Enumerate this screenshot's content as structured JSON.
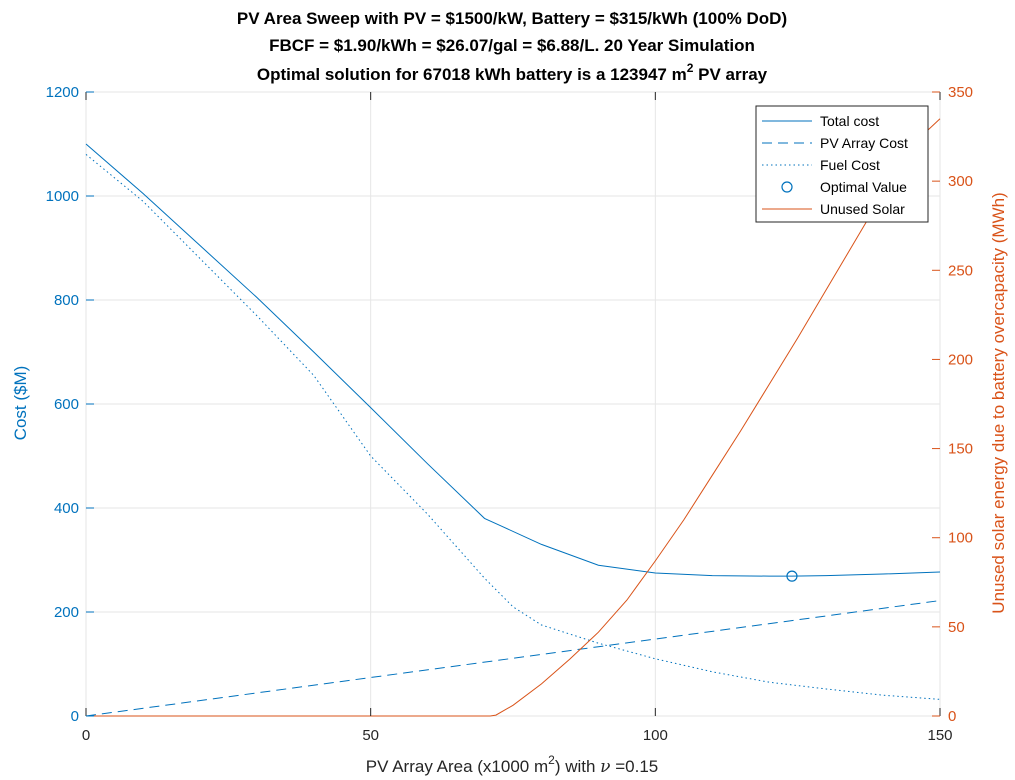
{
  "chart_data": {
    "type": "line",
    "title_lines": [
      "PV Area Sweep with PV = $1500/kW, Battery = $315/kWh (100% DoD)",
      "FBCF = $1.90/kWh = $26.07/gal = $6.88/L. 20 Year Simulation"
    ],
    "title_line3": {
      "before": "Optimal solution for 67018 kWh battery  is a 123947 m",
      "superscript": "2",
      "after": " PV array"
    },
    "xlabel": {
      "before": "PV Array Area (x1000 m",
      "superscript": "2",
      "after": ") with ",
      "symbol": "ν",
      "end": " =0.15"
    },
    "ylabel_left": "Cost ($M)",
    "ylabel_right": "Unused solar energy due to battery overcapacity (MWh)",
    "xlim": [
      0,
      150
    ],
    "ylim_left": [
      0,
      1200
    ],
    "ylim_right": [
      0,
      350
    ],
    "xticks": [
      0,
      50,
      100,
      150
    ],
    "yticks_left": [
      0,
      200,
      400,
      600,
      800,
      1000,
      1200
    ],
    "yticks_right": [
      0,
      50,
      100,
      150,
      200,
      250,
      300,
      350
    ],
    "grid": true,
    "legend_position": "top-right",
    "colors": {
      "left_axis": "#0072BD",
      "right_axis": "#D95319",
      "grid": "#e6e6e6"
    },
    "series": [
      {
        "name": "Total cost",
        "axis": "left",
        "style": "solid",
        "color": "#0072BD",
        "x": [
          0,
          10,
          20,
          30,
          40,
          50,
          60,
          70,
          73,
          80,
          90,
          100,
          110,
          120,
          124,
          130,
          140,
          150
        ],
        "y": [
          1100,
          1005,
          905,
          805,
          700,
          593,
          485,
          380,
          365,
          330,
          290,
          275,
          270,
          269,
          269,
          270,
          273,
          277
        ]
      },
      {
        "name": "PV Array Cost",
        "axis": "left",
        "style": "dashed",
        "color": "#0072BD",
        "x": [
          0,
          150
        ],
        "y": [
          0,
          222
        ]
      },
      {
        "name": "Fuel Cost",
        "axis": "left",
        "style": "dotted",
        "color": "#0072BD",
        "x": [
          0,
          10,
          20,
          30,
          40,
          50,
          60,
          70,
          75,
          80,
          90,
          100,
          110,
          120,
          130,
          140,
          150
        ],
        "y": [
          1080,
          990,
          880,
          770,
          655,
          500,
          388,
          265,
          210,
          175,
          140,
          110,
          85,
          65,
          52,
          40,
          32
        ]
      },
      {
        "name": "Optimal Value",
        "axis": "left",
        "style": "marker",
        "color": "#0072BD",
        "x": [
          124
        ],
        "y": [
          269
        ]
      },
      {
        "name": "Unused Solar",
        "axis": "right",
        "style": "solid",
        "color": "#D95319",
        "x": [
          0,
          71,
          72,
          75,
          80,
          85,
          90,
          95,
          100,
          105,
          110,
          115,
          120,
          125,
          130,
          135,
          140,
          145,
          150
        ],
        "y": [
          0,
          0,
          0.5,
          6,
          18,
          32,
          47,
          65,
          87,
          110,
          135,
          160,
          186,
          212,
          239,
          266,
          293,
          320,
          335
        ]
      }
    ]
  }
}
